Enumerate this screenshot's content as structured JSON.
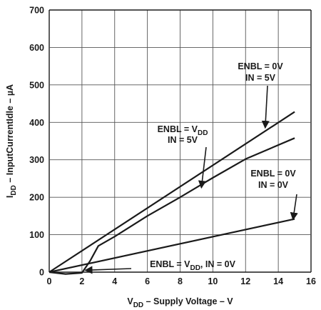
{
  "chart_data": {
    "type": "line",
    "xlabel": {
      "main": "V",
      "sub": "DD",
      "rest": " – Supply Voltage – V"
    },
    "ylabel": {
      "main": "I",
      "sub": "DD",
      "rest": " – InputCurrentIdle – µA"
    },
    "xlim": [
      0,
      16
    ],
    "ylim": [
      0,
      700
    ],
    "xticks": [
      "0",
      "2",
      "4",
      "6",
      "8",
      "10",
      "12",
      "14",
      "16"
    ],
    "yticks": [
      "0",
      "100",
      "200",
      "300",
      "400",
      "500",
      "600",
      "700"
    ],
    "grid": true,
    "series": [
      {
        "x": [
          0,
          15
        ],
        "y": [
          0,
          428
        ]
      },
      {
        "x": [
          0,
          1,
          2,
          2.5,
          3,
          4,
          6,
          8,
          10,
          12,
          15
        ],
        "y": [
          0,
          -5,
          -2,
          30,
          70,
          95,
          150,
          200,
          252,
          302,
          358
        ]
      },
      {
        "x": [
          0,
          15
        ],
        "y": [
          0,
          142
        ]
      }
    ],
    "annotations": [
      {
        "lines": [
          "ENBL = 0V",
          "IN = 5V"
        ],
        "arrow_to": [
          13.2,
          385
        ]
      },
      {
        "lines": [
          "ENBL = V{DD}",
          "IN = 5V"
        ],
        "arrow_to": [
          9.3,
          225
        ]
      },
      {
        "lines": [
          "ENBL = 0V",
          "IN = 0V"
        ],
        "arrow_to": [
          14.9,
          140
        ]
      },
      {
        "lines": [
          "ENBL = V{DD}, IN = 0V"
        ],
        "arrow_to": [
          2.2,
          5
        ]
      }
    ]
  }
}
